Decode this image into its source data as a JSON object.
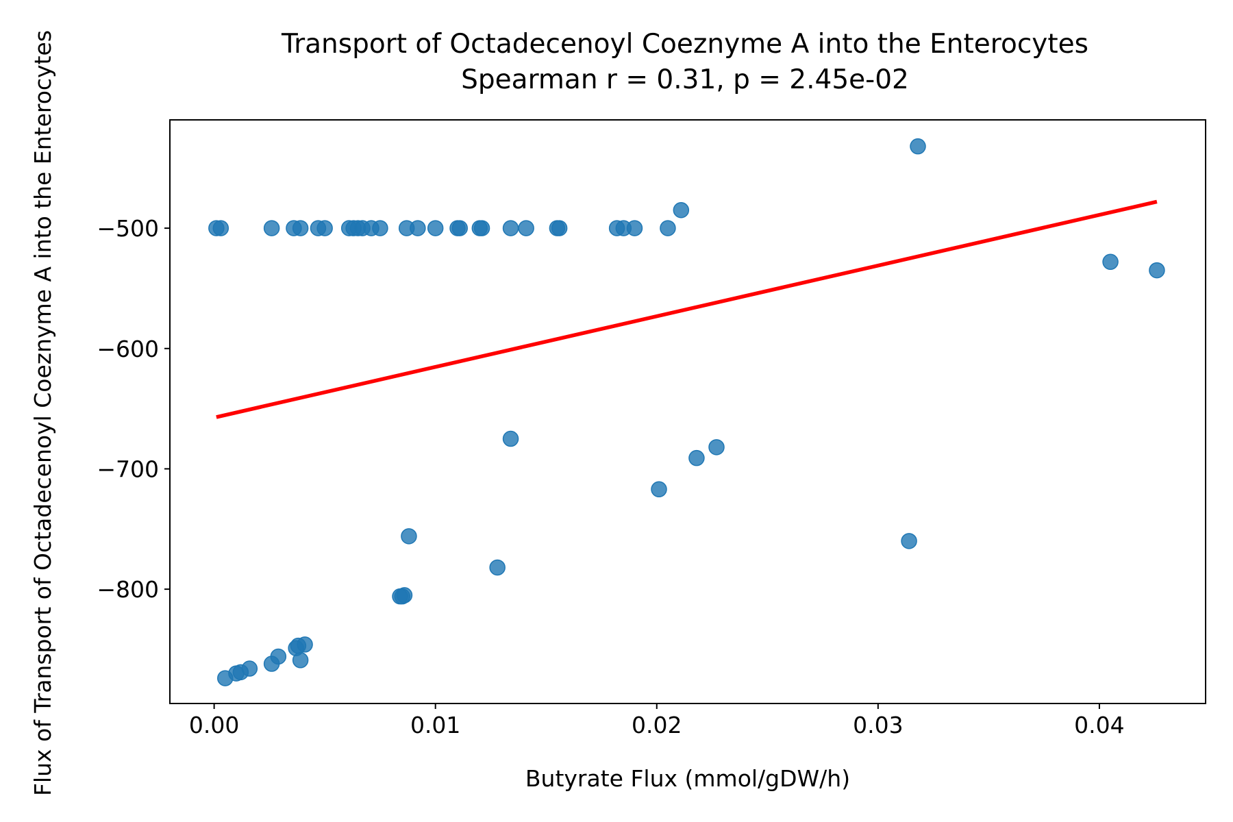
{
  "chart_data": {
    "type": "scatter",
    "title": "Transport of Octadecenoyl Coeznyme A into the Enterocytes",
    "subtitle": "Spearman r = 0.31, p = 2.45e-02",
    "xlabel": "Butyrate Flux (mmol/gDW/h)",
    "ylabel": "Flux of Transport of Octadecenoyl Coeznyme A into the Enterocytes",
    "xlim": [
      -0.002,
      0.0448
    ],
    "ylim": [
      -895,
      -410
    ],
    "xticks": [
      0.0,
      0.01,
      0.02,
      0.03,
      0.04
    ],
    "xtick_labels": [
      "0.00",
      "0.01",
      "0.02",
      "0.03",
      "0.04"
    ],
    "yticks": [
      -500,
      -600,
      -700,
      -800
    ],
    "ytick_labels": [
      "−500",
      "−600",
      "−700",
      "−800"
    ],
    "grid": false,
    "point_color": "#1f77b4",
    "line_color": "#ff0000",
    "points": [
      {
        "x": 0.0001,
        "y": -500
      },
      {
        "x": 0.0003,
        "y": -500
      },
      {
        "x": 0.0026,
        "y": -500
      },
      {
        "x": 0.0036,
        "y": -500
      },
      {
        "x": 0.0039,
        "y": -500
      },
      {
        "x": 0.0047,
        "y": -500
      },
      {
        "x": 0.005,
        "y": -500
      },
      {
        "x": 0.0061,
        "y": -500
      },
      {
        "x": 0.0063,
        "y": -500
      },
      {
        "x": 0.0065,
        "y": -500
      },
      {
        "x": 0.0067,
        "y": -500
      },
      {
        "x": 0.0071,
        "y": -500
      },
      {
        "x": 0.0075,
        "y": -500
      },
      {
        "x": 0.0087,
        "y": -500
      },
      {
        "x": 0.0092,
        "y": -500
      },
      {
        "x": 0.01,
        "y": -500
      },
      {
        "x": 0.011,
        "y": -500
      },
      {
        "x": 0.0111,
        "y": -500
      },
      {
        "x": 0.012,
        "y": -500
      },
      {
        "x": 0.0121,
        "y": -500
      },
      {
        "x": 0.0134,
        "y": -500
      },
      {
        "x": 0.0141,
        "y": -500
      },
      {
        "x": 0.0155,
        "y": -500
      },
      {
        "x": 0.0156,
        "y": -500
      },
      {
        "x": 0.0182,
        "y": -500
      },
      {
        "x": 0.0185,
        "y": -500
      },
      {
        "x": 0.019,
        "y": -500
      },
      {
        "x": 0.0205,
        "y": -500
      },
      {
        "x": 0.0211,
        "y": -485
      },
      {
        "x": 0.0318,
        "y": -432
      },
      {
        "x": 0.0405,
        "y": -528
      },
      {
        "x": 0.0426,
        "y": -535
      },
      {
        "x": 0.0134,
        "y": -675
      },
      {
        "x": 0.0227,
        "y": -682
      },
      {
        "x": 0.0218,
        "y": -691
      },
      {
        "x": 0.0201,
        "y": -717
      },
      {
        "x": 0.0088,
        "y": -756
      },
      {
        "x": 0.0314,
        "y": -760
      },
      {
        "x": 0.0128,
        "y": -782
      },
      {
        "x": 0.0084,
        "y": -806
      },
      {
        "x": 0.0085,
        "y": -806
      },
      {
        "x": 0.0086,
        "y": -805
      },
      {
        "x": 0.0041,
        "y": -846
      },
      {
        "x": 0.0038,
        "y": -847
      },
      {
        "x": 0.0037,
        "y": -849
      },
      {
        "x": 0.0039,
        "y": -859
      },
      {
        "x": 0.0029,
        "y": -856
      },
      {
        "x": 0.0026,
        "y": -862
      },
      {
        "x": 0.0016,
        "y": -866
      },
      {
        "x": 0.0012,
        "y": -869
      },
      {
        "x": 0.001,
        "y": -870
      },
      {
        "x": 0.0005,
        "y": -874
      }
    ],
    "fit_line": {
      "x": [
        0.0001,
        0.0426
      ],
      "y": [
        -657,
        -478
      ]
    }
  }
}
